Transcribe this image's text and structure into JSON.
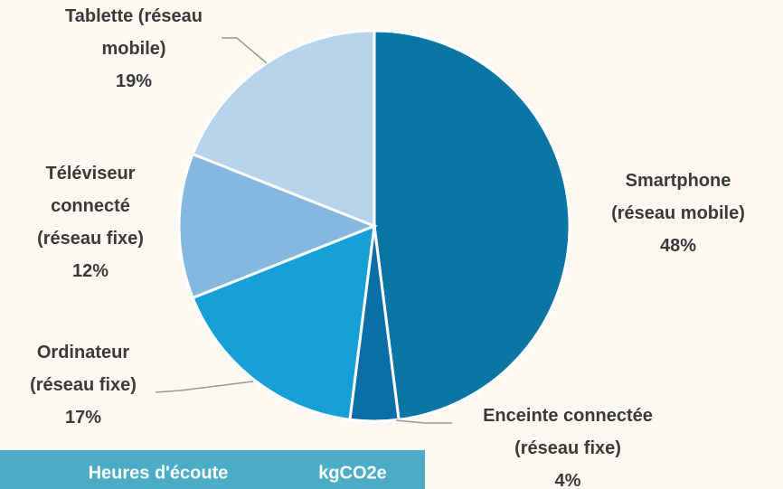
{
  "chart_data": {
    "type": "pie",
    "categories": [
      "Smartphone (réseau mobile)",
      "Enceinte connectée (réseau fixe)",
      "Ordinateur (réseau fixe)",
      "Téléviseur connecté (réseau fixe)",
      "Tablette (réseau mobile)"
    ],
    "values": [
      48,
      4,
      17,
      12,
      19
    ],
    "value_labels": [
      "48%",
      "4%",
      "17%",
      "12%",
      "19%"
    ],
    "colors": [
      "#0b76a4",
      "#0c6ea6",
      "#17a0d7",
      "#84b8df",
      "#b7d3ec"
    ]
  },
  "table": {
    "headers": [
      "Heures d'écoute",
      "kgCO2e"
    ]
  }
}
